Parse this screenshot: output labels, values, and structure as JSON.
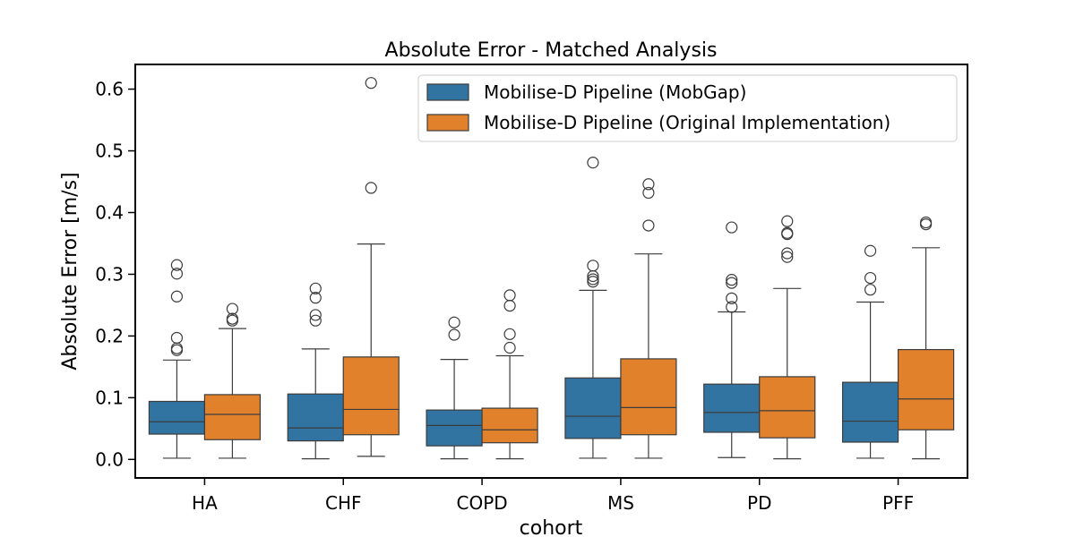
{
  "chart_data": {
    "type": "box",
    "title": "Absolute Error - Matched Analysis",
    "xlabel": "cohort",
    "ylabel": "Absolute Error [m/s]",
    "ylim": [
      -0.03,
      0.64
    ],
    "yticks": [
      0.0,
      0.1,
      0.2,
      0.3,
      0.4,
      0.5,
      0.6
    ],
    "ytick_labels": [
      "0.0",
      "0.1",
      "0.2",
      "0.3",
      "0.4",
      "0.5",
      "0.6"
    ],
    "categories": [
      "HA",
      "CHF",
      "COPD",
      "MS",
      "PD",
      "PFF"
    ],
    "legend_position": "top-right",
    "grid": false,
    "series": [
      {
        "name": "Mobilise-D Pipeline (MobGap)",
        "color": "#3274a1",
        "boxes": [
          {
            "whisker_low": 0.002,
            "q1": 0.041,
            "median": 0.061,
            "q3": 0.094,
            "whisker_high": 0.161,
            "outliers": [
              0.177,
              0.18,
              0.197,
              0.264,
              0.301,
              0.315
            ]
          },
          {
            "whisker_low": 0.001,
            "q1": 0.03,
            "median": 0.051,
            "q3": 0.106,
            "whisker_high": 0.179,
            "outliers": [
              0.225,
              0.234,
              0.262,
              0.277
            ]
          },
          {
            "whisker_low": 0.001,
            "q1": 0.022,
            "median": 0.055,
            "q3": 0.08,
            "whisker_high": 0.162,
            "outliers": [
              0.202,
              0.222
            ]
          },
          {
            "whisker_low": 0.002,
            "q1": 0.034,
            "median": 0.07,
            "q3": 0.132,
            "whisker_high": 0.274,
            "outliers": [
              0.288,
              0.292,
              0.297,
              0.314,
              0.481
            ]
          },
          {
            "whisker_low": 0.003,
            "q1": 0.044,
            "median": 0.076,
            "q3": 0.122,
            "whisker_high": 0.239,
            "outliers": [
              0.247,
              0.261,
              0.286,
              0.291,
              0.376
            ]
          },
          {
            "whisker_low": 0.002,
            "q1": 0.028,
            "median": 0.062,
            "q3": 0.125,
            "whisker_high": 0.255,
            "outliers": [
              0.275,
              0.294,
              0.338
            ]
          }
        ]
      },
      {
        "name": "Mobilise-D Pipeline (Original Implementation)",
        "color": "#e1812c",
        "boxes": [
          {
            "whisker_low": 0.002,
            "q1": 0.032,
            "median": 0.073,
            "q3": 0.105,
            "whisker_high": 0.212,
            "outliers": [
              0.225,
              0.228,
              0.244
            ]
          },
          {
            "whisker_low": 0.005,
            "q1": 0.04,
            "median": 0.081,
            "q3": 0.166,
            "whisker_high": 0.349,
            "outliers": [
              0.44,
              0.61
            ]
          },
          {
            "whisker_low": 0.001,
            "q1": 0.027,
            "median": 0.048,
            "q3": 0.083,
            "whisker_high": 0.168,
            "outliers": [
              0.181,
              0.203,
              0.249,
              0.266
            ]
          },
          {
            "whisker_low": 0.002,
            "q1": 0.04,
            "median": 0.084,
            "q3": 0.163,
            "whisker_high": 0.333,
            "outliers": [
              0.379,
              0.432,
              0.446
            ]
          },
          {
            "whisker_low": 0.001,
            "q1": 0.035,
            "median": 0.079,
            "q3": 0.134,
            "whisker_high": 0.277,
            "outliers": [
              0.328,
              0.334,
              0.365,
              0.367,
              0.386
            ]
          },
          {
            "whisker_low": 0.001,
            "q1": 0.048,
            "median": 0.098,
            "q3": 0.178,
            "whisker_high": 0.343,
            "outliers": [
              0.381,
              0.384
            ]
          }
        ]
      }
    ]
  }
}
